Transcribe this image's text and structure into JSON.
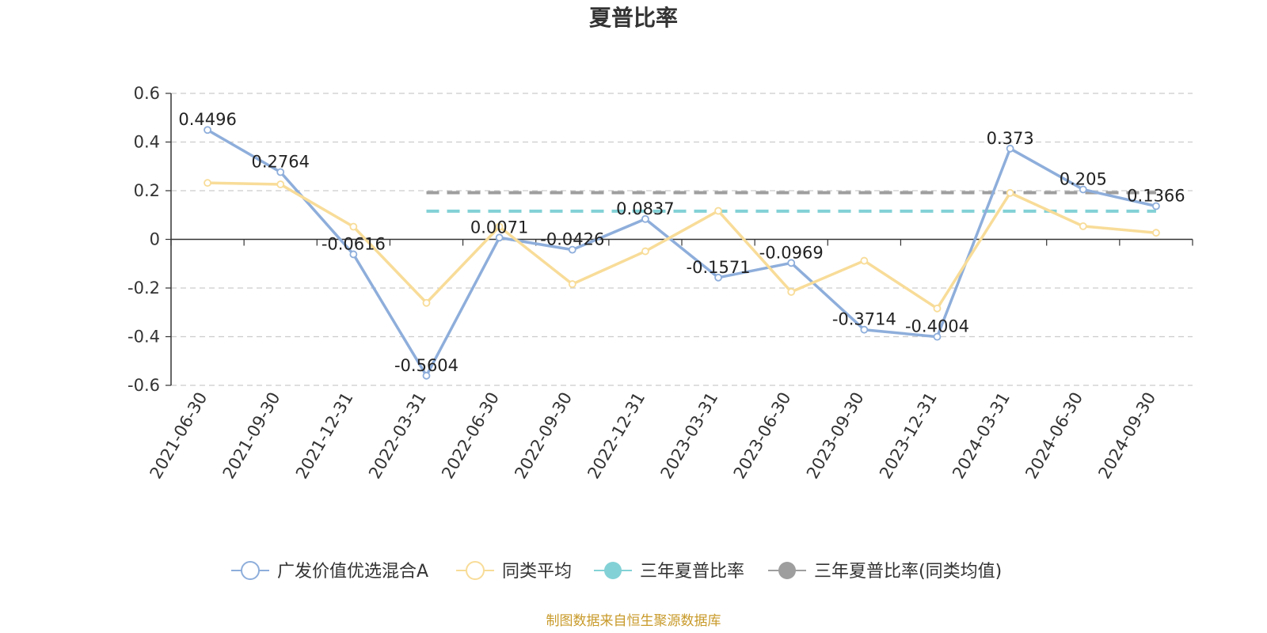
{
  "chart_data": {
    "type": "line",
    "title": "夏普比率",
    "categories": [
      "2021-06-30",
      "2021-09-30",
      "2021-12-31",
      "2022-03-31",
      "2022-06-30",
      "2022-09-30",
      "2022-12-31",
      "2023-03-31",
      "2023-06-30",
      "2023-09-30",
      "2023-12-31",
      "2024-03-31",
      "2024-06-30",
      "2024-09-30"
    ],
    "ylim": [
      -0.6,
      0.6
    ],
    "yticks": [
      0.6,
      0.4,
      0.2,
      0,
      -0.2,
      -0.4,
      -0.6
    ],
    "ytick_labels": [
      "0.6",
      "0.4",
      "0.2",
      "0",
      "-0.2",
      "-0.4",
      "-0.6"
    ],
    "grid": true,
    "legend_position": "bottom",
    "series": [
      {
        "name": "广发价值优选混合A",
        "color": "#8eaedb",
        "values": [
          0.4496,
          0.2764,
          -0.0616,
          -0.5604,
          0.0071,
          -0.0426,
          0.0837,
          -0.1571,
          -0.0969,
          -0.3714,
          -0.4004,
          0.373,
          0.205,
          0.1366
        ],
        "labels": [
          "0.4496",
          "0.2764",
          "-0.0616",
          "-0.5604",
          "0.0071",
          "-0.0426",
          "0.0837",
          "-0.1571",
          "-0.0969",
          "-0.3714",
          "-0.4004",
          "0.373",
          "0.205",
          "0.1366"
        ]
      },
      {
        "name": "同类平均",
        "color": "#f8dc98",
        "values": [
          0.232,
          0.226,
          0.052,
          -0.261,
          0.052,
          -0.184,
          -0.049,
          0.117,
          -0.216,
          -0.088,
          -0.284,
          0.191,
          0.054,
          0.027
        ]
      },
      {
        "name": "三年夏普比率",
        "color": "#82d1d6",
        "start_index": 3,
        "end_index": 13,
        "value": 0.116
      },
      {
        "name": "三年夏普比率(同类均值)",
        "color": "#9e9e9e",
        "start_index": 3,
        "end_index": 13,
        "value": 0.192
      }
    ],
    "source_note": "制图数据来自恒生聚源数据库"
  }
}
